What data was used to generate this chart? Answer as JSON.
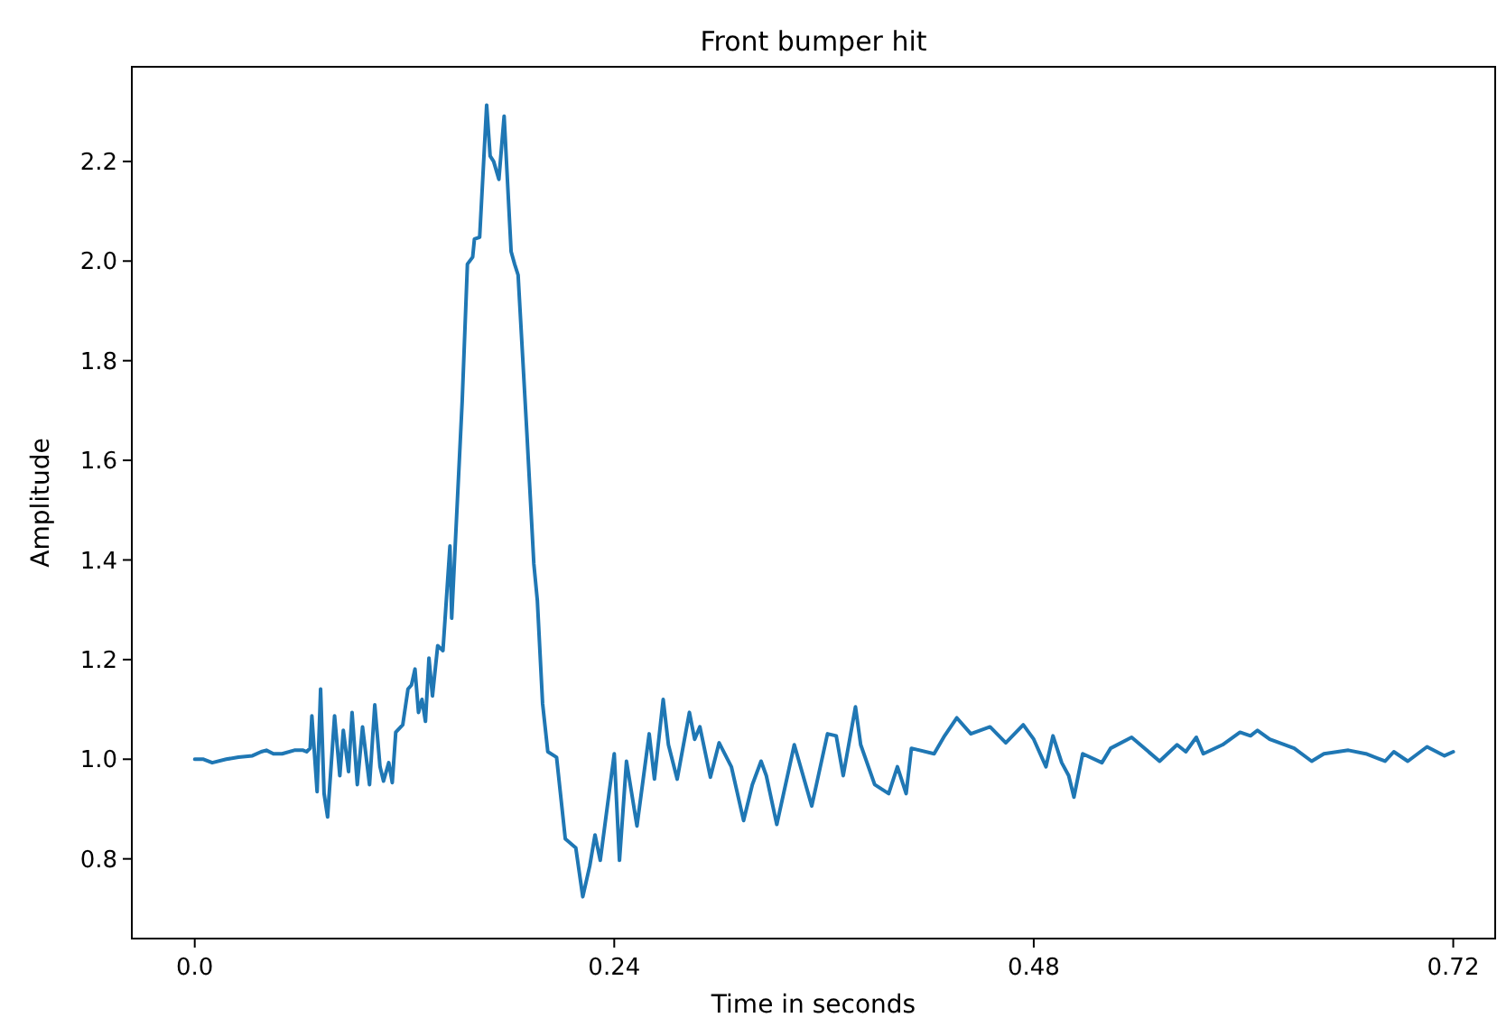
{
  "chart_data": {
    "type": "line",
    "title": "Front bumper hit",
    "xlabel": "Time in seconds",
    "ylabel": "Amplitude",
    "xlim": [
      -0.036,
      0.744
    ],
    "ylim": [
      0.64,
      2.39
    ],
    "xticks": [
      {
        "value": 0,
        "label": "0.0"
      },
      0.24,
      0.48,
      0.72
    ],
    "yticks": [
      {
        "value": 0.8,
        "label": "0.8"
      },
      {
        "value": 1.0,
        "label": "1.0"
      },
      1.2,
      1.4,
      1.6,
      1.8,
      {
        "value": 2.0,
        "label": "2.0"
      },
      2.2
    ],
    "series": [
      {
        "color": "#1f77b4",
        "x": [
          0,
          0.005,
          0.01,
          0.018,
          0.025,
          0.033,
          0.038,
          0.041,
          0.045,
          0.05,
          0.057,
          0.062,
          0.064,
          0.066,
          0.067,
          0.07,
          0.072,
          0.074,
          0.076,
          0.08,
          0.083,
          0.085,
          0.088,
          0.09,
          0.093,
          0.096,
          0.1,
          0.103,
          0.106,
          0.108,
          0.111,
          0.113,
          0.115,
          0.119,
          0.122,
          0.124,
          0.126,
          0.128,
          0.13,
          0.132,
          0.134,
          0.136,
          0.139,
          0.142,
          0.146,
          0.147,
          0.153,
          0.156,
          0.159,
          0.16,
          0.163,
          0.167,
          0.169,
          0.171,
          0.174,
          0.177,
          0.181,
          0.183,
          0.185,
          0.19,
          0.194,
          0.196,
          0.199,
          0.202,
          0.207,
          0.212,
          0.218,
          0.222,
          0.226,
          0.229,
          0.232,
          0.24,
          0.243,
          0.247,
          0.253,
          0.26,
          0.263,
          0.268,
          0.271,
          0.276,
          0.283,
          0.286,
          0.289,
          0.295,
          0.3,
          0.307,
          0.314,
          0.319,
          0.324,
          0.327,
          0.333,
          0.343,
          0.353,
          0.362,
          0.367,
          0.371,
          0.378,
          0.381,
          0.389,
          0.397,
          0.402,
          0.407,
          0.41,
          0.423,
          0.429,
          0.436,
          0.444,
          0.455,
          0.464,
          0.474,
          0.48,
          0.487,
          0.491,
          0.496,
          0.5,
          0.503,
          0.508,
          0.519,
          0.524,
          0.536,
          0.552,
          0.562,
          0.567,
          0.573,
          0.577,
          0.588,
          0.598,
          0.604,
          0.608,
          0.615,
          0.629,
          0.639,
          0.646,
          0.66,
          0.67,
          0.681,
          0.686,
          0.694,
          0.705,
          0.715,
          0.72
        ],
        "values": [
          1.0,
          1.0,
          0.993,
          1.0,
          1.004,
          1.007,
          1.015,
          1.018,
          1.011,
          1.011,
          1.018,
          1.018,
          1.015,
          1.022,
          1.087,
          0.935,
          1.141,
          0.931,
          0.884,
          1.087,
          0.967,
          1.058,
          0.975,
          1.094,
          0.949,
          1.065,
          0.949,
          1.109,
          0.985,
          0.956,
          0.993,
          0.953,
          1.054,
          1.069,
          1.141,
          1.149,
          1.181,
          1.094,
          1.12,
          1.076,
          1.203,
          1.127,
          1.228,
          1.218,
          1.428,
          1.283,
          1.718,
          1.994,
          2.008,
          2.044,
          2.048,
          2.313,
          2.211,
          2.2,
          2.164,
          2.291,
          2.019,
          1.994,
          1.972,
          1.656,
          1.392,
          1.319,
          1.112,
          1.015,
          1.004,
          0.84,
          0.822,
          0.724,
          0.786,
          0.848,
          0.797,
          1.011,
          0.797,
          0.996,
          0.866,
          1.051,
          0.96,
          1.12,
          1.029,
          0.96,
          1.094,
          1.04,
          1.065,
          0.964,
          1.033,
          0.985,
          0.877,
          0.949,
          0.996,
          0.967,
          0.869,
          1.029,
          0.906,
          1.051,
          1.047,
          0.967,
          1.105,
          1.029,
          0.949,
          0.931,
          0.985,
          0.931,
          1.022,
          1.011,
          1.047,
          1.083,
          1.051,
          1.065,
          1.033,
          1.069,
          1.04,
          0.985,
          1.047,
          0.993,
          0.967,
          0.924,
          1.011,
          0.993,
          1.022,
          1.044,
          0.996,
          1.029,
          1.015,
          1.044,
          1.011,
          1.029,
          1.054,
          1.047,
          1.058,
          1.04,
          1.022,
          0.996,
          1.011,
          1.018,
          1.011,
          0.996,
          1.015,
          0.996,
          1.025,
          1.007,
          1.015
        ]
      }
    ]
  }
}
